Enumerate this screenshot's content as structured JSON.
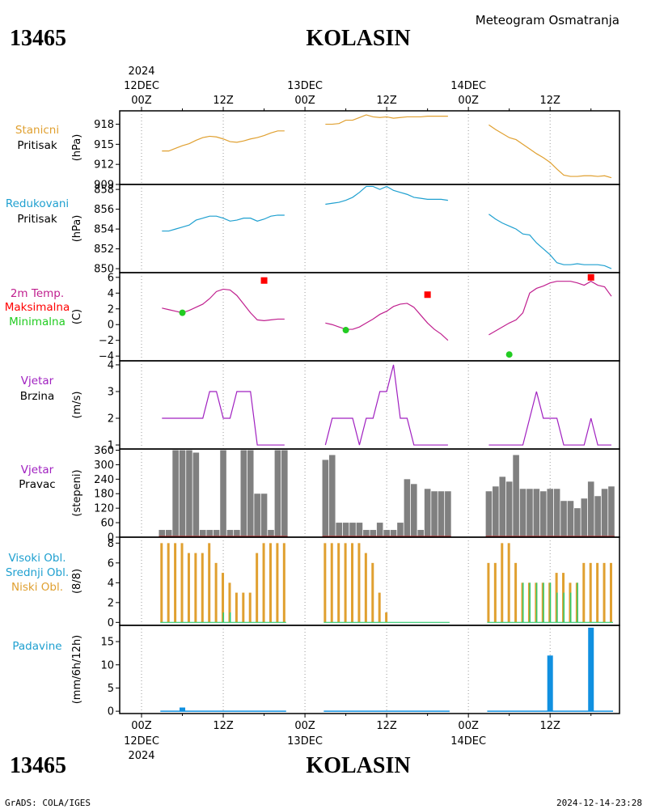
{
  "header": {
    "station_id": "13465",
    "station_name": "KOLASIN",
    "subtitle": "Meteogram Osmatranja"
  },
  "footer": {
    "credit": "GrADS: COLA/IGES",
    "timestamp": "2024-12-14-23:28"
  },
  "colors": {
    "pressure": "#e0a030",
    "reduced": "#1fa0d0",
    "temp_line": "#c0208f",
    "temp_max": "#ff0000",
    "temp_min": "#22cc22",
    "wind": "#a020c0",
    "dir_bar": "#808080",
    "cloud_low": "#e0a030",
    "cloud_mid": "#2ecc71",
    "precip": "#1090e0"
  },
  "chart_data": [
    {
      "type": "line",
      "panel": "stanicni-pritisak",
      "title_lines": [
        "Stanicni",
        "Pritisak"
      ],
      "ylabel": "(hPa)",
      "yticks": [
        909,
        912,
        915,
        918
      ],
      "ylim": [
        909,
        920
      ],
      "series": [
        {
          "x": [
            3,
            4,
            5,
            6,
            7,
            8,
            9,
            10,
            11,
            12,
            13,
            14,
            15,
            16,
            17,
            18,
            19,
            20,
            21
          ],
          "y": [
            914,
            914,
            914.4,
            914.8,
            915.1,
            915.6,
            916,
            916.2,
            916.1,
            915.8,
            915.4,
            915.3,
            915.5,
            915.8,
            916,
            916.3,
            916.7,
            917,
            917
          ]
        },
        {
          "x": [
            27,
            28,
            29,
            30,
            31,
            32,
            33,
            34,
            35,
            36,
            37,
            38,
            39,
            40,
            41,
            42,
            43,
            44,
            45
          ],
          "y": [
            918,
            918,
            918.1,
            918.6,
            918.6,
            919,
            919.4,
            919.1,
            919,
            919.1,
            918.9,
            919,
            919.1,
            919.1,
            919.1,
            919.2,
            919.2,
            919.2,
            919.2
          ]
        },
        {
          "x": [
            51,
            52,
            53,
            54,
            55,
            56,
            57,
            58,
            59,
            60,
            61,
            62,
            63,
            64,
            65,
            66,
            67,
            68,
            69
          ],
          "y": [
            917.9,
            917.2,
            916.6,
            916,
            915.7,
            915,
            914.3,
            913.6,
            913,
            912.3,
            911.3,
            910.4,
            910.2,
            910.2,
            910.3,
            910.3,
            910.2,
            910.3,
            910
          ]
        }
      ]
    },
    {
      "type": "line",
      "panel": "redukovani-pritisak",
      "title_lines": [
        "Redukovani",
        "Pritisak"
      ],
      "ylabel": "(hPa)",
      "yticks": [
        850,
        852,
        854,
        856,
        858
      ],
      "ylim": [
        849.6,
        858.5
      ],
      "series": [
        {
          "x": [
            3,
            4,
            5,
            6,
            7,
            8,
            9,
            10,
            11,
            12,
            13,
            14,
            15,
            16,
            17,
            18,
            19,
            20,
            21
          ],
          "y": [
            853.8,
            853.8,
            854,
            854.2,
            854.4,
            854.9,
            855.1,
            855.3,
            855.3,
            855.1,
            854.8,
            854.9,
            855.1,
            855.1,
            854.8,
            855,
            855.3,
            855.4,
            855.4
          ]
        },
        {
          "x": [
            27,
            28,
            29,
            30,
            31,
            32,
            33,
            34,
            35,
            36,
            37,
            38,
            39,
            40,
            41,
            42,
            43,
            44,
            45
          ],
          "y": [
            856.5,
            856.6,
            856.7,
            856.9,
            857.2,
            857.7,
            858.3,
            858.3,
            858,
            858.3,
            857.9,
            857.7,
            857.5,
            857.2,
            857.1,
            857,
            857,
            857,
            856.9
          ]
        },
        {
          "x": [
            51,
            52,
            53,
            54,
            55,
            56,
            57,
            58,
            59,
            60,
            61,
            62,
            63,
            64,
            65,
            66,
            67,
            68,
            69
          ],
          "y": [
            855.5,
            855,
            854.6,
            854.3,
            854,
            853.5,
            853.4,
            852.6,
            852,
            851.4,
            850.6,
            850.4,
            850.4,
            850.5,
            850.4,
            850.4,
            850.4,
            850.3,
            850
          ]
        }
      ]
    },
    {
      "type": "line",
      "panel": "temperatura",
      "title_lines": [
        "2m Temp.",
        "Maksimalna",
        "Minimalna"
      ],
      "ylabel": "(C)",
      "yticks": [
        -4,
        -2,
        0,
        2,
        4,
        6
      ],
      "ylim": [
        -4.6,
        6.6
      ],
      "series": [
        {
          "name": "2m Temp.",
          "x": [
            3,
            4,
            5,
            6,
            7,
            8,
            9,
            10,
            11,
            12,
            13,
            14,
            15,
            16,
            17,
            18,
            19,
            20,
            21
          ],
          "y": [
            2.1,
            1.9,
            1.7,
            1.5,
            1.8,
            2.2,
            2.6,
            3.3,
            4.2,
            4.5,
            4.4,
            3.7,
            2.6,
            1.5,
            0.6,
            0.5,
            0.6,
            0.7,
            0.7
          ]
        },
        {
          "name": "2m Temp.",
          "x": [
            27,
            28,
            29,
            30,
            31,
            32,
            33,
            34,
            35,
            36,
            37,
            38,
            39,
            40,
            41,
            42,
            43,
            44,
            45
          ],
          "y": [
            0.2,
            0,
            -0.3,
            -0.6,
            -0.6,
            -0.3,
            0.2,
            0.7,
            1.3,
            1.7,
            2.3,
            2.6,
            2.7,
            2.2,
            1.2,
            0.2,
            -0.6,
            -1.2,
            -2
          ]
        },
        {
          "name": "2m Temp.",
          "x": [
            51,
            52,
            53,
            54,
            55,
            56,
            57,
            58,
            59,
            60,
            61,
            62,
            63,
            64,
            65,
            66,
            67,
            68,
            69
          ],
          "y": [
            -1.3,
            -0.8,
            -0.3,
            0.2,
            0.6,
            1.5,
            4,
            4.6,
            4.9,
            5.3,
            5.5,
            5.5,
            5.5,
            5.3,
            5,
            5.5,
            5,
            4.8,
            3.6
          ]
        }
      ],
      "max_points": {
        "name": "Maksimalna",
        "x": [
          18,
          42,
          66
        ],
        "y": [
          5.6,
          3.8,
          6.0
        ]
      },
      "min_points": {
        "name": "Minimalna",
        "x": [
          6,
          30,
          54
        ],
        "y": [
          1.5,
          -0.7,
          -3.8
        ]
      }
    },
    {
      "type": "line",
      "panel": "vjetar-brzina",
      "title_lines": [
        "Vjetar",
        "Brzina"
      ],
      "ylabel": "(m/s)",
      "yticks": [
        1,
        2,
        3,
        4
      ],
      "ylim": [
        0.85,
        4.15
      ],
      "series": [
        {
          "x": [
            3,
            4,
            5,
            6,
            7,
            8,
            9,
            10,
            11,
            12,
            13,
            14,
            15,
            16,
            17,
            18,
            19,
            20,
            21
          ],
          "y": [
            2,
            2,
            2,
            2,
            2,
            2,
            2,
            3,
            3,
            2,
            2,
            3,
            3,
            3,
            1,
            1,
            1,
            1,
            1
          ]
        },
        {
          "x": [
            27,
            28,
            29,
            30,
            31,
            32,
            33,
            34,
            35,
            36,
            37,
            38,
            39,
            40,
            41,
            42,
            43,
            44,
            45
          ],
          "y": [
            1,
            2,
            2,
            2,
            2,
            1,
            2,
            2,
            3,
            3,
            4,
            2,
            2,
            1,
            1,
            1,
            1,
            1,
            1
          ]
        },
        {
          "x": [
            51,
            52,
            53,
            54,
            55,
            56,
            57,
            58,
            59,
            60,
            61,
            62,
            63,
            64,
            65,
            66,
            67,
            68,
            69
          ],
          "y": [
            1,
            1,
            1,
            1,
            1,
            1,
            2,
            3,
            2,
            2,
            2,
            1,
            1,
            1,
            1,
            2,
            1,
            1,
            1
          ]
        }
      ]
    },
    {
      "type": "bar",
      "panel": "vjetar-pravac",
      "title_lines": [
        "Vjetar",
        "Pravac"
      ],
      "ylabel": "(stepeni)",
      "yticks": [
        0,
        60,
        120,
        180,
        240,
        300,
        360
      ],
      "ylim": [
        0,
        365
      ],
      "series": [
        {
          "x": [
            3,
            4,
            5,
            6,
            7,
            8,
            9,
            10,
            11,
            12,
            13,
            14,
            15,
            16,
            17,
            18,
            19,
            20,
            21
          ],
          "y": [
            30,
            30,
            360,
            360,
            360,
            350,
            30,
            30,
            30,
            360,
            30,
            30,
            360,
            360,
            180,
            180,
            30,
            360,
            360
          ]
        },
        {
          "x": [
            27,
            28,
            29,
            30,
            31,
            32,
            33,
            34,
            35,
            36,
            37,
            38,
            39,
            40,
            41,
            42,
            43,
            44,
            45
          ],
          "y": [
            320,
            340,
            60,
            60,
            60,
            60,
            30,
            30,
            60,
            30,
            30,
            60,
            240,
            220,
            30,
            200,
            190,
            190,
            190
          ]
        },
        {
          "x": [
            51,
            52,
            53,
            54,
            55,
            56,
            57,
            58,
            59,
            60,
            61,
            62,
            63,
            64,
            65,
            66,
            67,
            68,
            69
          ],
          "y": [
            190,
            210,
            250,
            230,
            340,
            200,
            200,
            200,
            190,
            200,
            200,
            150,
            150,
            120,
            160,
            230,
            170,
            200,
            210
          ]
        }
      ]
    },
    {
      "type": "bar",
      "panel": "oblacnost",
      "title_lines": [
        "Visoki Obl.",
        "Srednji Obl.",
        "Niski Obl."
      ],
      "ylabel": "(8/8)",
      "yticks": [
        0,
        2,
        4,
        6,
        8
      ],
      "ylim": [
        -0.3,
        8.6
      ],
      "series": [
        {
          "name": "Niski Obl.",
          "x": [
            3,
            4,
            5,
            6,
            7,
            8,
            9,
            10,
            11,
            12,
            13,
            14,
            15,
            16,
            17,
            18,
            19,
            20,
            21
          ],
          "y": [
            8,
            8,
            8,
            8,
            7,
            7,
            7,
            8,
            6,
            5,
            4,
            3,
            3,
            3,
            7,
            8,
            8,
            8,
            8
          ]
        },
        {
          "name": "Niski Obl.",
          "x": [
            27,
            28,
            29,
            30,
            31,
            32,
            33,
            34,
            35,
            36,
            37
          ],
          "y": [
            8,
            8,
            8,
            8,
            8,
            8,
            7,
            6,
            3,
            1,
            0
          ]
        },
        {
          "name": "Niski Obl.",
          "x": [
            51,
            52,
            53,
            54,
            55,
            56,
            57,
            58,
            59,
            60,
            61,
            62,
            63,
            64,
            65,
            66,
            67,
            68,
            69
          ],
          "y": [
            6,
            6,
            8,
            8,
            6,
            4,
            4,
            4,
            4,
            4,
            5,
            5,
            4,
            4,
            6,
            6,
            6,
            6,
            6
          ]
        },
        {
          "name": "Srednji Obl.",
          "x": [
            12,
            13,
            56,
            57,
            58,
            59,
            60,
            61,
            62,
            63,
            64
          ],
          "y": [
            1,
            1,
            4,
            4,
            4,
            4,
            4,
            3,
            3,
            3,
            4
          ]
        }
      ]
    },
    {
      "type": "bar",
      "panel": "padavine",
      "title_lines": [
        "Padavine"
      ],
      "ylabel": "(mm/6h/12h)",
      "yticks": [
        0,
        5,
        10,
        15
      ],
      "ylim": [
        -0.5,
        18.5
      ],
      "series": [
        {
          "x": [
            6,
            60,
            66
          ],
          "y": [
            0.8,
            12,
            18
          ]
        }
      ]
    }
  ]
}
